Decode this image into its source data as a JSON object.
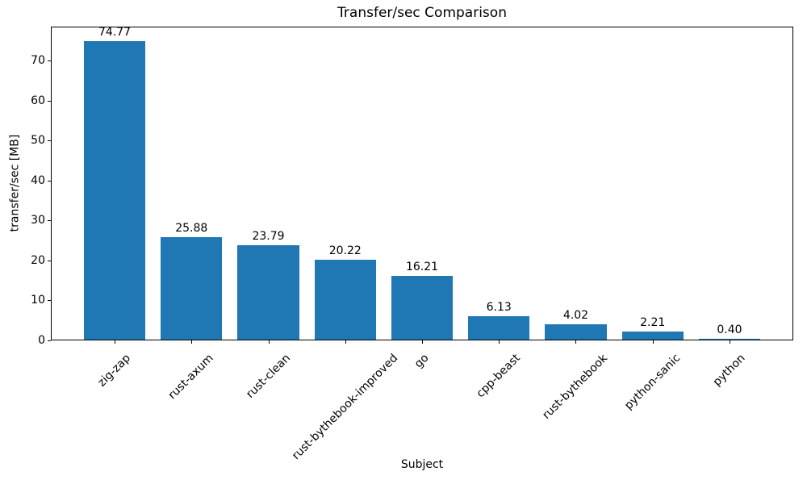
{
  "chart_data": {
    "type": "bar",
    "title": "Transfer/sec Comparison",
    "xlabel": "Subject",
    "ylabel": "transfer/sec [MB]",
    "categories": [
      "zig-zap",
      "rust-axum",
      "rust-clean",
      "rust-bythebook-improved",
      "go",
      "cpp-beast",
      "rust-bythebook",
      "python-sanic",
      "python"
    ],
    "values": [
      74.77,
      25.88,
      23.79,
      20.22,
      16.21,
      6.13,
      4.02,
      2.21,
      0.4
    ],
    "value_labels": [
      "74.77",
      "25.88",
      "23.79",
      "20.22",
      "16.21",
      "6.13",
      "4.02",
      "2.21",
      "0.40"
    ],
    "yticks": [
      0,
      10,
      20,
      30,
      40,
      50,
      60,
      70
    ],
    "ylim": [
      0,
      78.5
    ],
    "x_tick_rotation_deg": 45,
    "bar_color": "#1f77b4",
    "text_color": "#000000",
    "background_color": "#ffffff",
    "grid": false,
    "legend": null
  }
}
